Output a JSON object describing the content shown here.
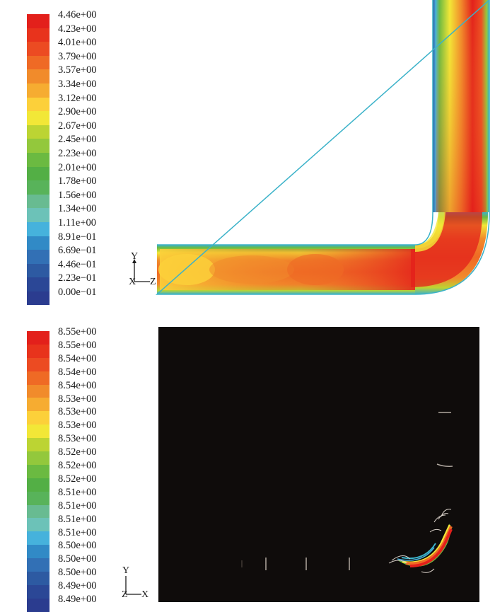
{
  "top_figure": {
    "legend_labels": [
      "4.46e+00",
      "4.23e+00",
      "4.01e+00",
      "3.79e+00",
      "3.57e+00",
      "3.34e+00",
      "3.12e+00",
      "2.90e+00",
      "2.67e+00",
      "2.45e+00",
      "2.23e+00",
      "2.01e+00",
      "1.78e+00",
      "1.56e+00",
      "1.34e+00",
      "1.11e+00",
      "8.91e−01",
      "6.69e−01",
      "4.46e−01",
      "2.23e−01",
      "0.00e−01"
    ],
    "legend_colors": [
      "#e3201b",
      "#e8331c",
      "#ec4b22",
      "#ef6a25",
      "#f18b2b",
      "#f6ac31",
      "#fcd03a",
      "#f2e737",
      "#bcd433",
      "#93c83c",
      "#6bba41",
      "#53af45",
      "#58b35a",
      "#68bb91",
      "#6cc2b8",
      "#46b2dc",
      "#318ac6",
      "#3270b5",
      "#2d5aa2",
      "#2b4796",
      "#2b3c8f"
    ],
    "axis": {
      "vertical": "Y",
      "horizontal": "X",
      "depth": "Z"
    }
  },
  "bottom_figure": {
    "legend_labels": [
      "8.55e+00",
      "8.55e+00",
      "8.54e+00",
      "8.54e+00",
      "8.54e+00",
      "8.53e+00",
      "8.53e+00",
      "8.53e+00",
      "8.53e+00",
      "8.52e+00",
      "8.52e+00",
      "8.52e+00",
      "8.51e+00",
      "8.51e+00",
      "8.51e+00",
      "8.51e+00",
      "8.50e+00",
      "8.50e+00",
      "8.50e+00",
      "8.49e+00",
      "8.49e+00"
    ],
    "legend_colors": [
      "#e3201b",
      "#e8331c",
      "#ec4b22",
      "#ef6a25",
      "#f18b2b",
      "#f6ac31",
      "#fcd03a",
      "#f2e737",
      "#bcd433",
      "#93c83c",
      "#6bba41",
      "#53af45",
      "#58b35a",
      "#68bb91",
      "#6cc2b8",
      "#46b2dc",
      "#318ac6",
      "#3270b5",
      "#2d5aa2",
      "#2b4796",
      "#2b3c8f"
    ],
    "axis": {
      "vertical": "Y",
      "horizontal": "X",
      "depth": "Z"
    }
  }
}
